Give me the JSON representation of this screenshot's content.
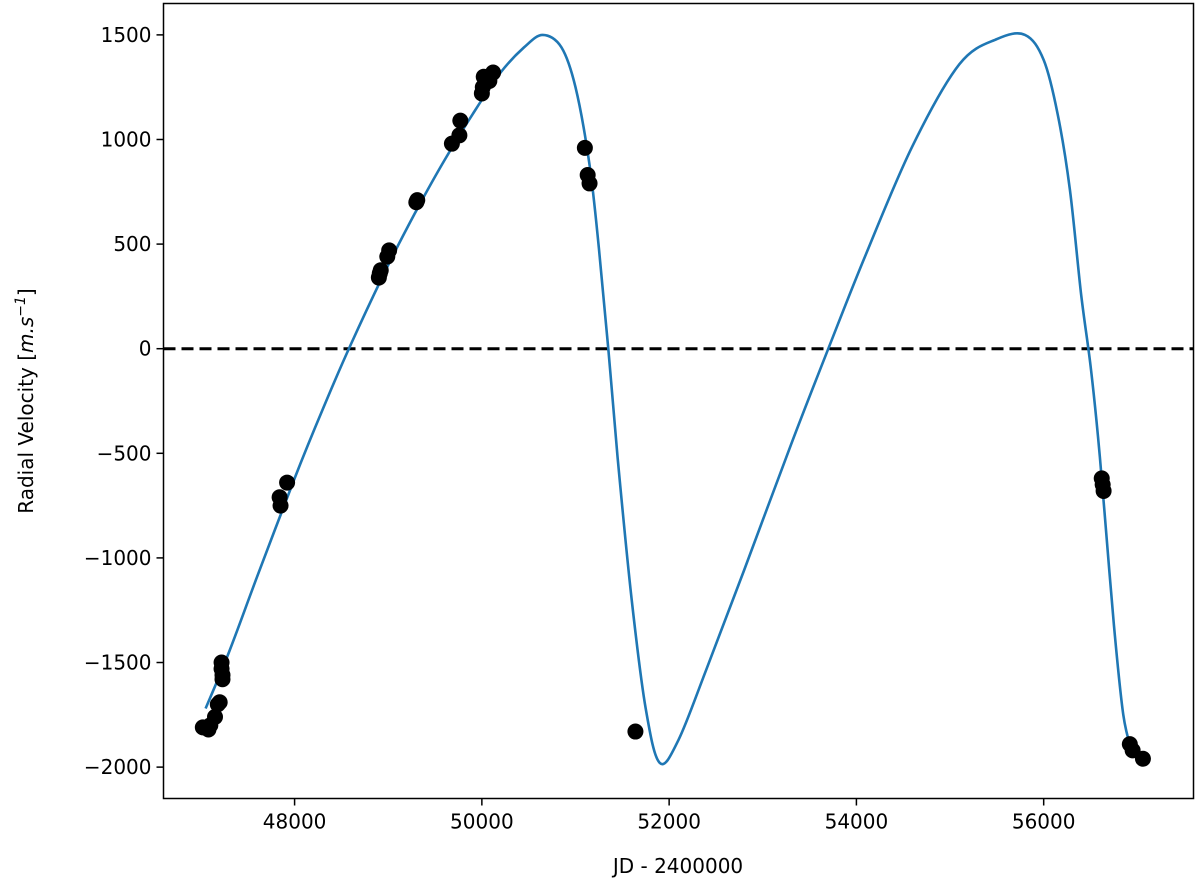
{
  "chart_data": {
    "type": "scatter",
    "xlabel": "JD - 2400000",
    "ylabel_prefix": "Radial Velocity [",
    "ylabel_unit_m": "m.s",
    "ylabel_unit_exp": "−1",
    "ylabel_suffix": "]",
    "xlim": [
      46600,
      57600
    ],
    "ylim": [
      -2150,
      1650
    ],
    "xticks": [
      48000,
      50000,
      52000,
      54000,
      56000
    ],
    "yticks": [
      -2000,
      -1500,
      -1000,
      -500,
      0,
      500,
      1000,
      1500
    ],
    "xtick_labels": [
      "48000",
      "50000",
      "52000",
      "54000",
      "56000"
    ],
    "ytick_labels": [
      "−2000",
      "−1500",
      "−1000",
      "−500",
      "0",
      "500",
      "1000",
      "1500"
    ],
    "grid": false,
    "reference_line": {
      "y": 0,
      "style": "dashed",
      "color": "#000000"
    },
    "series": [
      {
        "kind": "observations",
        "color": "#000000",
        "x": [
          47020,
          47080,
          47100,
          47150,
          47180,
          47200,
          47220,
          47220,
          47230,
          47230,
          47840,
          47850,
          47920,
          48900,
          48910,
          48920,
          48990,
          49010,
          49300,
          49310,
          49680,
          49760,
          49770,
          50000,
          50010,
          50020,
          50080,
          50120,
          51100,
          51130,
          51150,
          51640,
          56620,
          56630,
          56640,
          56920,
          56950,
          57060
        ],
        "y": [
          -1810,
          -1820,
          -1800,
          -1760,
          -1700,
          -1690,
          -1500,
          -1530,
          -1560,
          -1580,
          -710,
          -750,
          -640,
          340,
          360,
          375,
          440,
          470,
          700,
          710,
          980,
          1020,
          1090,
          1220,
          1250,
          1300,
          1280,
          1320,
          960,
          830,
          790,
          -1830,
          -620,
          -650,
          -680,
          -1890,
          -1920,
          -1960
        ]
      },
      {
        "kind": "model",
        "color": "#1f77b4",
        "x": [
          47050,
          47300,
          47600,
          48000,
          48300,
          48600,
          49000,
          49300,
          49600,
          49900,
          50200,
          50450,
          50650,
          50850,
          51000,
          51150,
          51250,
          51350,
          51450,
          51600,
          51750,
          51900,
          52100,
          52400,
          52800,
          53300,
          53700,
          54100,
          54600,
          55100,
          55500,
          55800,
          56000,
          56150,
          56280,
          56400,
          56500,
          56580,
          56650,
          56750,
          56850,
          56950
        ],
        "y": [
          -1720,
          -1450,
          -1090,
          -620,
          -290,
          20,
          400,
          660,
          900,
          1120,
          1320,
          1440,
          1500,
          1440,
          1250,
          880,
          480,
          0,
          -520,
          -1200,
          -1720,
          -1980,
          -1870,
          -1530,
          -1060,
          -460,
          0,
          450,
          970,
          1360,
          1480,
          1500,
          1380,
          1120,
          760,
          260,
          -80,
          -420,
          -780,
          -1320,
          -1750,
          -1940
        ]
      }
    ]
  }
}
